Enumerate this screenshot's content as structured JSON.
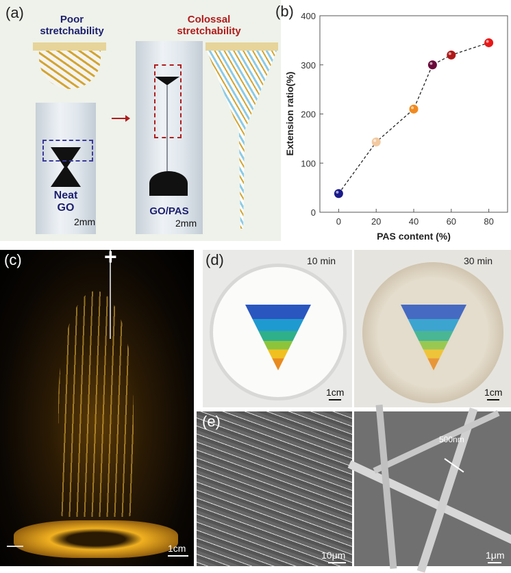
{
  "panel_a": {
    "label": "(a)",
    "poor_title": "Poor\nstretchability",
    "colossal_title": "Colossal\nstretchability",
    "neat_go_label": "Neat\nGO",
    "go_pas_label": "GO/PAS",
    "scale_left": "2mm",
    "scale_right": "2mm"
  },
  "panel_b": {
    "label": "(b)"
  },
  "chart_data": {
    "type": "scatter",
    "title": "",
    "xlabel": "PAS content (%)",
    "ylabel": "Extension ratio(%)",
    "xlim": [
      -10,
      90
    ],
    "ylim": [
      0,
      400
    ],
    "xticks": [
      0,
      20,
      40,
      60,
      80
    ],
    "yticks": [
      0,
      100,
      200,
      300,
      400
    ],
    "grid": false,
    "connector": "dashed",
    "points": [
      {
        "x": 0,
        "y": 38,
        "color": "#1a1a8a"
      },
      {
        "x": 20,
        "y": 143,
        "color": "#f2c9a0"
      },
      {
        "x": 40,
        "y": 210,
        "color": "#f08a20"
      },
      {
        "x": 50,
        "y": 300,
        "color": "#6a0a3a"
      },
      {
        "x": 60,
        "y": 320,
        "color": "#b01818"
      },
      {
        "x": 80,
        "y": 345,
        "color": "#e81818"
      }
    ]
  },
  "panel_c": {
    "label": "(c)",
    "plus": "+",
    "scale": "1cm"
  },
  "panel_d": {
    "label": "(d)",
    "time_left": "10 min",
    "time_right": "30 min",
    "scale_left": "1cm",
    "scale_right": "1cm"
  },
  "panel_e": {
    "label": "(e)",
    "scale_left": "10μm",
    "scale_right": "1μm",
    "annotation": "500nm"
  }
}
